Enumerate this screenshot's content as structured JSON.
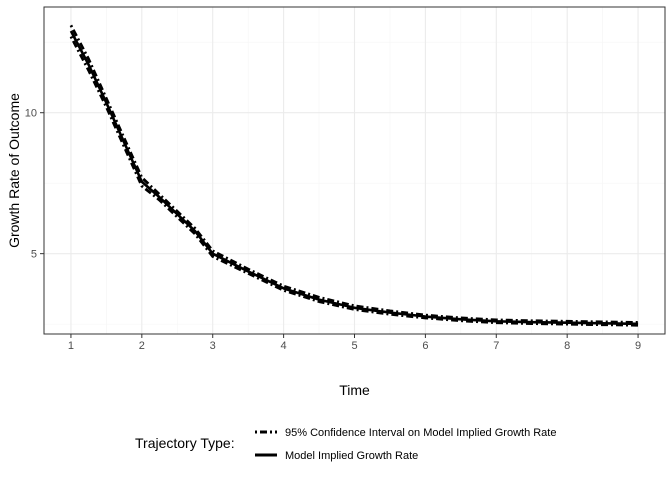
{
  "chart_data": {
    "type": "line",
    "xlabel": "Time",
    "ylabel": "Growth Rate of Outcome",
    "xlim": [
      0.62,
      9.38
    ],
    "ylim": [
      2.15,
      13.75
    ],
    "x_ticks": [
      1,
      2,
      3,
      4,
      5,
      6,
      7,
      8,
      9
    ],
    "y_ticks": [
      5,
      10
    ],
    "grid": true,
    "legend_position": "bottom",
    "legend_title": "Trajectory Type:",
    "series": [
      {
        "name": "95% Confidence Interval on Model Implied Growth Rate",
        "style": "dotdash",
        "x": [
          1,
          1.25,
          1.5,
          1.75,
          2,
          2.25,
          2.5,
          2.75,
          3,
          3.5,
          4,
          4.5,
          5,
          5.5,
          6,
          6.5,
          7,
          7.5,
          8,
          8.5,
          9
        ],
        "y": [
          13.1,
          11.9,
          10.5,
          9.1,
          7.7,
          7.1,
          6.5,
          5.9,
          5.1,
          4.45,
          3.85,
          3.45,
          3.15,
          2.97,
          2.82,
          2.72,
          2.65,
          2.62,
          2.6,
          2.58,
          2.56
        ]
      },
      {
        "name": "95% Confidence Interval on Model Implied Growth Rate",
        "style": "dotdash",
        "x": [
          1,
          1.25,
          1.5,
          1.75,
          2,
          2.25,
          2.5,
          2.75,
          3,
          3.5,
          4,
          4.5,
          5,
          5.5,
          6,
          6.5,
          7,
          7.5,
          8,
          8.5,
          9
        ],
        "y": [
          12.7,
          11.5,
          10.2,
          8.8,
          7.4,
          6.9,
          6.3,
          5.7,
          4.9,
          4.3,
          3.7,
          3.3,
          3.02,
          2.85,
          2.72,
          2.62,
          2.55,
          2.52,
          2.5,
          2.48,
          2.46
        ]
      },
      {
        "name": "Model Implied Growth Rate",
        "style": "solid",
        "x": [
          1,
          1.25,
          1.5,
          1.75,
          2,
          2.25,
          2.5,
          2.75,
          3,
          3.5,
          4,
          4.5,
          5,
          5.5,
          6,
          6.5,
          7,
          7.5,
          8,
          8.5,
          9
        ],
        "y": [
          12.9,
          11.7,
          10.35,
          8.95,
          7.55,
          7.0,
          6.4,
          5.8,
          5.0,
          4.37,
          3.77,
          3.37,
          3.08,
          2.91,
          2.77,
          2.67,
          2.6,
          2.57,
          2.55,
          2.53,
          2.51
        ]
      }
    ],
    "legend": [
      {
        "label": "95% Confidence Interval on Model Implied Growth Rate",
        "style": "dotdash"
      },
      {
        "label": "Model Implied Growth Rate",
        "style": "solid"
      }
    ],
    "colors": {
      "line": "#000000",
      "panel_border": "#333333",
      "grid_major": "#ebebeb",
      "grid_minor": "#f5f5f5"
    }
  }
}
